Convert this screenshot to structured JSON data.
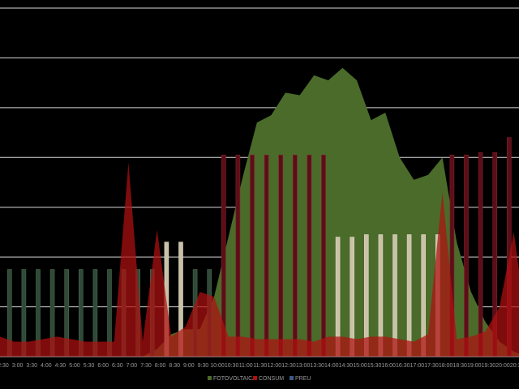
{
  "chart_data": {
    "type": "bar",
    "title": "",
    "xlabel": "",
    "ylabel": "",
    "grid": true,
    "legend_position": "bottom",
    "ylim": [
      0,
      7
    ],
    "categories": [
      "2:30",
      "3:00",
      "3:30",
      "4:00",
      "4:30",
      "5:00",
      "5:30",
      "6:00",
      "6:30",
      "7:00",
      "7:30",
      "8:00",
      "8:30",
      "9:00",
      "9:30",
      "10:00",
      "10:30",
      "11:00",
      "11:30",
      "12:00",
      "12:30",
      "13:00",
      "13:30",
      "14:00",
      "14:30",
      "15:00",
      "15:30",
      "16:00",
      "16:30",
      "17:00",
      "17:30",
      "18:00",
      "18:30",
      "19:00",
      "19:30",
      "20:00",
      "20:30",
      "21:00"
    ],
    "series": [
      {
        "name": "FOTOVOLTAICA",
        "type": "area",
        "color": "#4a6b2a",
        "values": [
          0,
          0,
          0,
          0,
          0,
          0,
          0,
          0,
          0,
          0,
          0,
          0.15,
          0.45,
          0.55,
          0.55,
          1.2,
          2.4,
          3.6,
          4.7,
          4.85,
          5.3,
          5.25,
          5.65,
          5.55,
          5.8,
          5.55,
          4.75,
          4.9,
          4,
          3.55,
          3.65,
          4,
          2.3,
          1.3,
          0.7,
          0.3,
          0.1,
          0
        ]
      },
      {
        "name": "CONSUM",
        "type": "area",
        "color": "#b01010",
        "values": [
          0.4,
          0.3,
          0.3,
          0.35,
          0.4,
          0.35,
          0.3,
          0.3,
          0.3,
          3.9,
          0.3,
          2.55,
          0.4,
          0.6,
          1.3,
          1.2,
          0.4,
          0.4,
          0.35,
          0.35,
          0.35,
          0.35,
          0.3,
          0.4,
          0.4,
          0.35,
          0.4,
          0.4,
          0.35,
          0.3,
          0.45,
          3.3,
          0.35,
          0.4,
          0.5,
          1,
          2.5,
          0.4
        ]
      },
      {
        "name": "PREU",
        "type": "bar",
        "color": "#3a5a8a",
        "values": [
          1.75,
          1.75,
          1.75,
          1.75,
          1.75,
          1.75,
          1.75,
          1.75,
          1.75,
          1.75,
          1.75,
          2.3,
          2.3,
          1.75,
          1.75,
          4.05,
          4.05,
          4.05,
          4.05,
          4.05,
          4.05,
          4.05,
          4.05,
          2.4,
          2.4,
          2.45,
          2.45,
          2.45,
          2.45,
          2.45,
          2.45,
          4.05,
          4.05,
          4.1,
          4.1,
          4.4,
          4.4,
          4.4
        ]
      }
    ]
  },
  "legend": [
    "FOTOVOLTAICA",
    "CONSUM",
    "PREU"
  ]
}
